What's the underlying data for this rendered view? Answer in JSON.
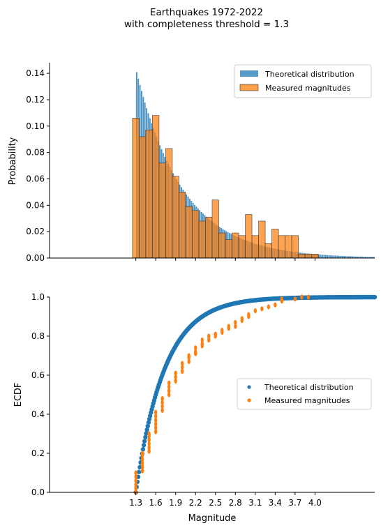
{
  "figure": {
    "title_line1": "Earthquakes 1972-2022",
    "title_line2": "with completeness threshold = 1.3"
  },
  "colors": {
    "theoretical": "#1f77b4",
    "measured": "#ff7f0e",
    "axis": "#000000"
  },
  "chart_data": [
    {
      "type": "bar",
      "subtype": "histogram",
      "ylabel": "Probability",
      "xlim": [
        0.0,
        4.9
      ],
      "ylim": [
        0,
        0.148
      ],
      "yticks": [
        "0.00",
        "0.02",
        "0.04",
        "0.06",
        "0.08",
        "0.10",
        "0.12",
        "0.14"
      ],
      "legend_position": "top-right",
      "series": [
        {
          "name": "Theoretical distribution",
          "color": "#1f77b4",
          "bin_start": 1.3,
          "bin_width": 0.025,
          "decay": 0.7,
          "peak": 0.141
        },
        {
          "name": "Measured magnitudes",
          "color": "#ff7f0e",
          "bin_start": 1.25,
          "bin_width": 0.1,
          "values": [
            0.106,
            0.092,
            0.097,
            0.108,
            0.072,
            0.083,
            0.062,
            0.05,
            0.039,
            0.036,
            0.028,
            0.031,
            0.044,
            0.019,
            0.014,
            0.019,
            0.017,
            0.033,
            0.017,
            0.028,
            0.011,
            0.022,
            0.017,
            0.017,
            0.017,
            0.003,
            0.003,
            0.003
          ]
        }
      ]
    },
    {
      "type": "scatter",
      "xlabel": "Magnitude",
      "ylabel": "ECDF",
      "xlim": [
        0.0,
        4.9
      ],
      "ylim": [
        0,
        1.0
      ],
      "xticks": [
        "1.3",
        "1.6",
        "1.9",
        "2.2",
        "2.5",
        "2.8",
        "3.1",
        "3.4",
        "3.7",
        "4.0"
      ],
      "yticks": [
        "0.0",
        "0.2",
        "0.4",
        "0.6",
        "0.8",
        "1.0"
      ],
      "legend_position": "center-right",
      "series": [
        {
          "name": "Theoretical distribution",
          "color": "#1f77b4",
          "x_range": [
            1.3,
            4.9
          ],
          "b_value": 1.0
        },
        {
          "name": "Measured magnitudes",
          "color": "#ff7f0e",
          "points": [
            [
              1.3,
              0.0
            ],
            [
              1.3,
              0.02
            ],
            [
              1.3,
              0.04
            ],
            [
              1.3,
              0.06
            ],
            [
              1.3,
              0.08
            ],
            [
              1.3,
              0.1
            ],
            [
              1.4,
              0.11
            ],
            [
              1.4,
              0.13
            ],
            [
              1.4,
              0.15
            ],
            [
              1.4,
              0.17
            ],
            [
              1.4,
              0.19
            ],
            [
              1.4,
              0.2
            ],
            [
              1.5,
              0.21
            ],
            [
              1.5,
              0.23
            ],
            [
              1.5,
              0.25
            ],
            [
              1.5,
              0.27
            ],
            [
              1.5,
              0.29
            ],
            [
              1.5,
              0.3
            ],
            [
              1.6,
              0.31
            ],
            [
              1.6,
              0.33
            ],
            [
              1.6,
              0.35
            ],
            [
              1.6,
              0.37
            ],
            [
              1.6,
              0.39
            ],
            [
              1.6,
              0.41
            ],
            [
              1.7,
              0.42
            ],
            [
              1.7,
              0.44
            ],
            [
              1.7,
              0.46
            ],
            [
              1.7,
              0.48
            ],
            [
              1.8,
              0.5
            ],
            [
              1.8,
              0.52
            ],
            [
              1.8,
              0.54
            ],
            [
              1.8,
              0.56
            ],
            [
              1.9,
              0.57
            ],
            [
              1.9,
              0.59
            ],
            [
              1.9,
              0.61
            ],
            [
              2.0,
              0.62
            ],
            [
              2.0,
              0.64
            ],
            [
              2.0,
              0.66
            ],
            [
              2.1,
              0.67
            ],
            [
              2.1,
              0.69
            ],
            [
              2.1,
              0.7
            ],
            [
              2.2,
              0.71
            ],
            [
              2.2,
              0.72
            ],
            [
              2.2,
              0.74
            ],
            [
              2.3,
              0.75
            ],
            [
              2.3,
              0.76
            ],
            [
              2.3,
              0.78
            ],
            [
              2.4,
              0.78
            ],
            [
              2.4,
              0.8
            ],
            [
              2.5,
              0.8
            ],
            [
              2.5,
              0.81
            ],
            [
              2.6,
              0.82
            ],
            [
              2.6,
              0.83
            ],
            [
              2.7,
              0.84
            ],
            [
              2.7,
              0.85
            ],
            [
              2.8,
              0.85
            ],
            [
              2.8,
              0.87
            ],
            [
              2.9,
              0.88
            ],
            [
              2.9,
              0.89
            ],
            [
              3.0,
              0.9
            ],
            [
              3.0,
              0.91
            ],
            [
              3.1,
              0.93
            ],
            [
              3.2,
              0.94
            ],
            [
              3.3,
              0.95
            ],
            [
              3.4,
              0.96
            ],
            [
              3.5,
              0.98
            ],
            [
              3.5,
              0.99
            ],
            [
              3.7,
              0.99
            ],
            [
              3.8,
              1.0
            ],
            [
              3.9,
              1.0
            ]
          ]
        }
      ]
    }
  ]
}
